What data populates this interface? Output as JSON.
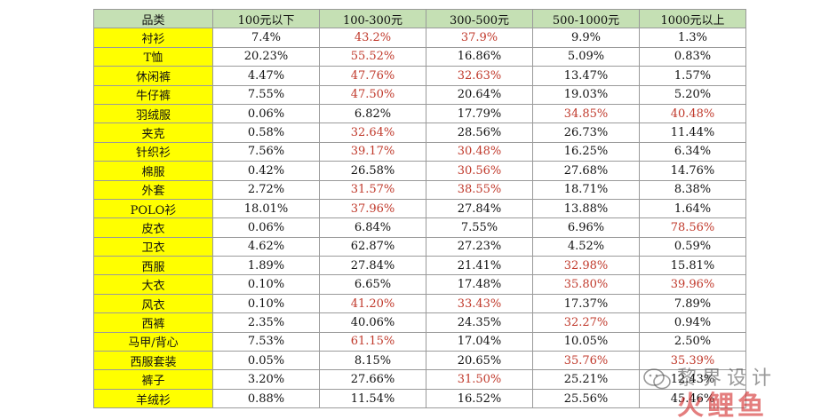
{
  "table": {
    "headers": [
      "品类",
      "100元以下",
      "100-300元",
      "300-500元",
      "500-1000元",
      "1000元以上"
    ],
    "rows": [
      {
        "category": "衬衫",
        "values": [
          "7.4%",
          "43.2%",
          "37.9%",
          "9.9%",
          "1.3%"
        ],
        "highlighted": [
          false,
          true,
          true,
          false,
          false
        ]
      },
      {
        "category": "T恤",
        "values": [
          "20.23%",
          "55.52%",
          "16.86%",
          "5.09%",
          "0.83%"
        ],
        "highlighted": [
          false,
          true,
          false,
          false,
          false
        ]
      },
      {
        "category": "休闲裤",
        "values": [
          "4.47%",
          "47.76%",
          "32.63%",
          "13.47%",
          "1.57%"
        ],
        "highlighted": [
          false,
          true,
          true,
          false,
          false
        ]
      },
      {
        "category": "牛仔裤",
        "values": [
          "7.55%",
          "47.50%",
          "20.64%",
          "19.03%",
          "5.20%"
        ],
        "highlighted": [
          false,
          true,
          false,
          false,
          false
        ]
      },
      {
        "category": "羽绒服",
        "values": [
          "0.06%",
          "6.82%",
          "17.79%",
          "34.85%",
          "40.48%"
        ],
        "highlighted": [
          false,
          false,
          false,
          true,
          true
        ]
      },
      {
        "category": "夹克",
        "values": [
          "0.58%",
          "32.64%",
          "28.56%",
          "26.73%",
          "11.44%"
        ],
        "highlighted": [
          false,
          true,
          false,
          false,
          false
        ]
      },
      {
        "category": "针织衫",
        "values": [
          "7.56%",
          "39.17%",
          "30.48%",
          "16.25%",
          "6.34%"
        ],
        "highlighted": [
          false,
          true,
          true,
          false,
          false
        ]
      },
      {
        "category": "棉服",
        "values": [
          "0.42%",
          "26.58%",
          "30.56%",
          "27.68%",
          "14.76%"
        ],
        "highlighted": [
          false,
          false,
          true,
          false,
          false
        ]
      },
      {
        "category": "外套",
        "values": [
          "2.72%",
          "31.57%",
          "38.55%",
          "18.71%",
          "8.38%"
        ],
        "highlighted": [
          false,
          true,
          true,
          false,
          false
        ]
      },
      {
        "category": "POLO衫",
        "values": [
          "18.01%",
          "37.96%",
          "27.84%",
          "13.88%",
          "1.64%"
        ],
        "highlighted": [
          false,
          true,
          false,
          false,
          false
        ]
      },
      {
        "category": "皮衣",
        "values": [
          "0.06%",
          "6.84%",
          "7.55%",
          "6.96%",
          "78.56%"
        ],
        "highlighted": [
          false,
          false,
          false,
          false,
          true
        ]
      },
      {
        "category": "卫衣",
        "values": [
          "4.62%",
          "62.87%",
          "27.23%",
          "4.52%",
          "0.59%"
        ],
        "highlighted": [
          false,
          false,
          false,
          false,
          false
        ]
      },
      {
        "category": "西服",
        "values": [
          "1.89%",
          "27.84%",
          "21.41%",
          "32.98%",
          "15.81%"
        ],
        "highlighted": [
          false,
          false,
          false,
          true,
          false
        ]
      },
      {
        "category": "大衣",
        "values": [
          "0.10%",
          "6.65%",
          "17.48%",
          "35.80%",
          "39.96%"
        ],
        "highlighted": [
          false,
          false,
          false,
          true,
          true
        ]
      },
      {
        "category": "风衣",
        "values": [
          "0.10%",
          "41.20%",
          "33.43%",
          "17.37%",
          "7.89%"
        ],
        "highlighted": [
          false,
          true,
          true,
          false,
          false
        ]
      },
      {
        "category": "西裤",
        "values": [
          "2.35%",
          "40.06%",
          "24.35%",
          "32.27%",
          "0.94%"
        ],
        "highlighted": [
          false,
          false,
          false,
          true,
          false
        ]
      },
      {
        "category": "马甲/背心",
        "values": [
          "7.53%",
          "61.15%",
          "17.04%",
          "10.05%",
          "2.50%"
        ],
        "highlighted": [
          false,
          true,
          false,
          false,
          false
        ]
      },
      {
        "category": "西服套装",
        "values": [
          "0.05%",
          "8.15%",
          "20.65%",
          "35.76%",
          "35.39%"
        ],
        "highlighted": [
          false,
          false,
          false,
          true,
          true
        ]
      },
      {
        "category": "裤子",
        "values": [
          "3.20%",
          "27.66%",
          "31.50%",
          "25.21%",
          "12.43%"
        ],
        "highlighted": [
          false,
          false,
          true,
          false,
          false
        ]
      },
      {
        "category": "羊绒衫",
        "values": [
          "0.88%",
          "11.54%",
          "16.52%",
          "25.56%",
          "45.46%"
        ],
        "highlighted": [
          false,
          false,
          false,
          false,
          false
        ]
      }
    ]
  },
  "watermark": {
    "line1": "黎界设计",
    "line2": "火鲤鱼",
    "icon": "wechat-icon"
  },
  "colors": {
    "header_bg": "#c5e0b4",
    "category_bg": "#ffff00",
    "highlight_text": "#c0392b"
  }
}
